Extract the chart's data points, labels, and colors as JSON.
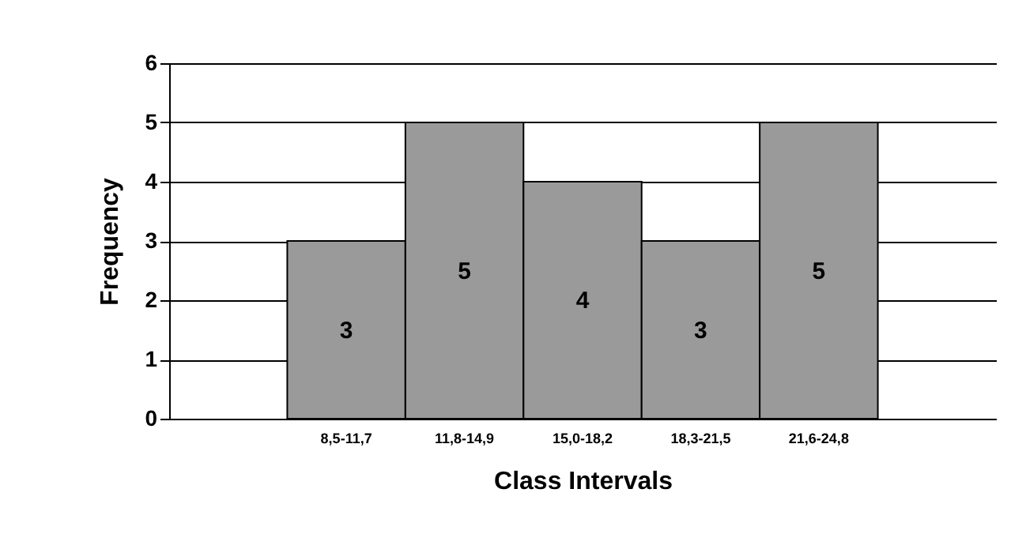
{
  "chart_data": {
    "type": "bar",
    "xlabel": "Class Intervals",
    "ylabel": "Frequency",
    "categories": [
      null,
      "8,5-11,7",
      "11,8-14,9",
      "15,0-18,2",
      "18,3-21,5",
      "21,6-24,8",
      null
    ],
    "values": [
      null,
      3,
      5,
      4,
      3,
      5,
      null
    ],
    "color": "#9a9a9a",
    "ylim": [
      0,
      6
    ],
    "yticks": [
      0,
      1,
      2,
      3,
      4,
      5,
      6
    ],
    "grid": "y",
    "data_labels": true
  }
}
